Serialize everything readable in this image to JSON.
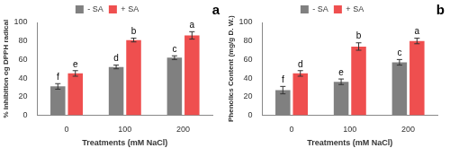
{
  "chart_data": [
    {
      "type": "bar",
      "panel_label": "a",
      "x_label": "Treatments (mM NaCl)",
      "y_label": "% inhibition og DPPH radical",
      "categories": [
        "0",
        "100",
        "200"
      ],
      "series": [
        {
          "name": "- SA",
          "color": "#808080",
          "values": [
            31,
            52,
            62
          ],
          "errors": [
            3,
            2,
            2
          ],
          "annotations": [
            "f",
            "d",
            "c"
          ]
        },
        {
          "name": "+ SA",
          "color": "#ef4f4f",
          "values": [
            45,
            81,
            86
          ],
          "errors": [
            3,
            2,
            4
          ],
          "annotations": [
            "e",
            "b",
            "a"
          ]
        }
      ],
      "ylim": [
        0,
        100
      ],
      "yticks": [
        0,
        20,
        40,
        60,
        80,
        100
      ],
      "grid": false,
      "legend": "top"
    },
    {
      "type": "bar",
      "panel_label": "b",
      "x_label": "Treatments (mM NaCl)",
      "y_label": "Phenolics Content (mg/g D. W.)",
      "categories": [
        "0",
        "100",
        "200"
      ],
      "series": [
        {
          "name": "- SA",
          "color": "#808080",
          "values": [
            27,
            36,
            57
          ],
          "errors": [
            4,
            3,
            3
          ],
          "annotations": [
            "f",
            "e",
            "c"
          ]
        },
        {
          "name": "+ SA",
          "color": "#ef4f4f",
          "values": [
            45,
            74,
            80
          ],
          "errors": [
            3,
            4,
            3
          ],
          "annotations": [
            "d",
            "b",
            "a"
          ]
        }
      ],
      "ylim": [
        0,
        100
      ],
      "yticks": [
        0,
        20,
        40,
        60,
        80,
        100
      ],
      "grid": false,
      "legend": "top"
    }
  ]
}
